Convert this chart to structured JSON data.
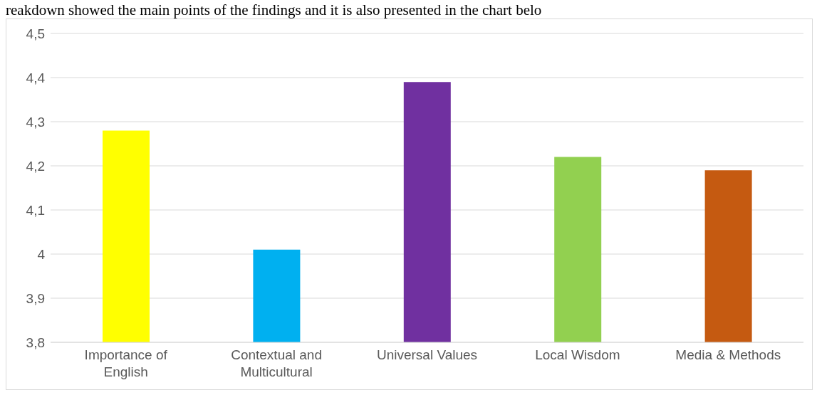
{
  "chart_data": {
    "type": "bar",
    "annotations": [
      "reakdown showed the main points of the findings and it is also presented in the chart belo"
    ],
    "categories": [
      "Importance of English",
      "Contextual and Multicultural",
      "Universal Values",
      "Local Wisdom",
      "Media & Methods"
    ],
    "values": [
      4.28,
      4.01,
      4.39,
      4.22,
      4.19
    ],
    "colors": [
      "#ffff00",
      "#00b0f0",
      "#7030a0",
      "#92d050",
      "#c55a11"
    ],
    "ylim": [
      3.8,
      4.5
    ],
    "yticks": [
      {
        "value": 3.8,
        "label": "3,8"
      },
      {
        "value": 3.9,
        "label": "3,9"
      },
      {
        "value": 4,
        "label": "4"
      },
      {
        "value": 4.1,
        "label": "4,1"
      },
      {
        "value": 4.2,
        "label": "4,2"
      },
      {
        "value": 4.3,
        "label": "4,3"
      },
      {
        "value": 4.4,
        "label": "4,4"
      },
      {
        "value": 4.5,
        "label": "4,5"
      }
    ],
    "grid": "y"
  }
}
